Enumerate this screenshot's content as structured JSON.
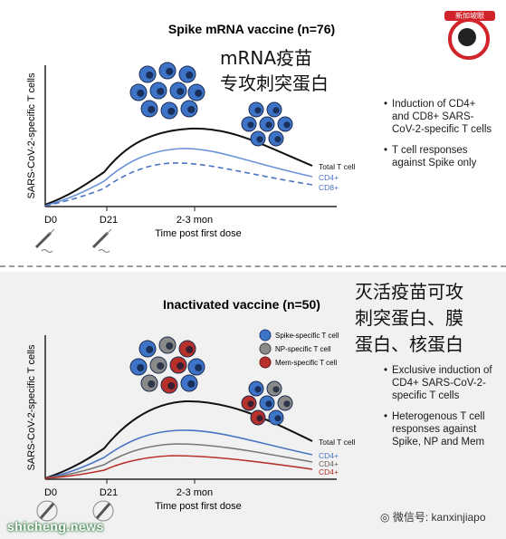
{
  "top": {
    "title": "Spike mRNA vaccine (n=76)",
    "cn_line1": "mRNA疫苗",
    "cn_line2": "专攻刺突蛋白",
    "ylabel": "SARS-CoV-2-specific T cells",
    "xticks": [
      "D0",
      "D21",
      "2-3 mon"
    ],
    "xlabel": "Time post first dose",
    "curve_labels": [
      "Total T cell",
      "CD4+",
      "CD8+"
    ],
    "bullets": [
      "Induction of CD4+ and CD8+ SARS-CoV-2-specific T cells",
      "T cell responses against Spike only"
    ]
  },
  "bottom": {
    "title": "Inactivated vaccine (n=50)",
    "cn_line1": "灭活疫苗可攻",
    "cn_line2": "刺突蛋白、膜",
    "cn_line3": "蛋白、核蛋白",
    "ylabel": "SARS-CoV-2-specific T cells",
    "xticks": [
      "D0",
      "D21",
      "2-3 mon"
    ],
    "xlabel": "Time post first dose",
    "curve_labels": [
      "Total T cell",
      "CD4+",
      "CD4+",
      "CD4+"
    ],
    "legend": [
      "Spike-specific T cell",
      "NP-specific T cell",
      "Mem-specific T cell"
    ],
    "bullets": [
      "Exclusive induction of CD4+ SARS-CoV-2-specific T cells",
      "Heterogenous T cell responses against Spike, NP and Mem"
    ]
  },
  "logo_text": "新加坡眼",
  "watermark": "微信号: kanxinjiapo",
  "site": "shicheng.news",
  "colors": {
    "spike": "#3e74c8",
    "np": "#8a8a8a",
    "mem": "#b8302a",
    "total": "#111111",
    "cd4_top": "#6a93d8",
    "cd8_top": "#4a74c4",
    "logo": "#d1232a"
  }
}
